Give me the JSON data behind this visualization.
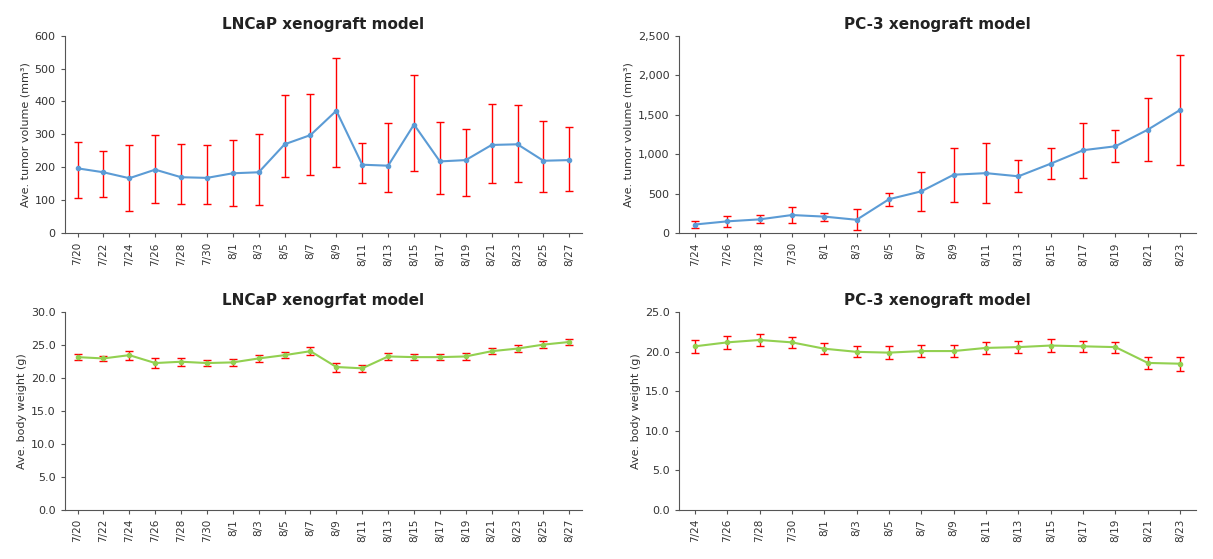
{
  "lncap_tumor": {
    "title": "LNCaP xenograft model",
    "ylabel": "Ave. tumor volume (mm³)",
    "xlabels": [
      "7/20",
      "7/22",
      "7/24",
      "7/26",
      "7/28",
      "7/30",
      "8/1",
      "8/3",
      "8/5",
      "8/7",
      "8/9",
      "8/11",
      "8/13",
      "8/15",
      "8/17",
      "8/19",
      "8/21",
      "8/23",
      "8/25",
      "8/27"
    ],
    "values": [
      197,
      185,
      167,
      193,
      170,
      168,
      182,
      185,
      270,
      298,
      372,
      208,
      205,
      330,
      218,
      222,
      268,
      270,
      220,
      222
    ],
    "yerr_lo": [
      90,
      75,
      100,
      100,
      80,
      80,
      100,
      100,
      100,
      120,
      170,
      55,
      80,
      140,
      100,
      110,
      115,
      115,
      95,
      95
    ],
    "yerr_hi": [
      80,
      65,
      100,
      105,
      100,
      100,
      100,
      115,
      150,
      125,
      160,
      65,
      130,
      150,
      120,
      95,
      125,
      120,
      120,
      100
    ],
    "ylim": [
      0,
      600
    ],
    "yticks": [
      0,
      100,
      200,
      300,
      400,
      500,
      600
    ],
    "line_color": "#5B9BD5",
    "err_color": "#FF0000"
  },
  "pc3_tumor": {
    "title": "PC-3 xenograft model",
    "ylabel": "Ave. tumor volume (mm³)",
    "xlabels": [
      "7/24",
      "7/26",
      "7/28",
      "7/30",
      "8/1",
      "8/3",
      "8/5",
      "8/7",
      "8/9",
      "8/11",
      "8/13",
      "8/15",
      "8/17",
      "8/19",
      "8/21",
      "8/23"
    ],
    "values": [
      110,
      150,
      175,
      230,
      210,
      170,
      430,
      530,
      740,
      760,
      720,
      880,
      1050,
      1100,
      1310,
      1560
    ],
    "yerr_lo": [
      40,
      70,
      50,
      100,
      50,
      130,
      80,
      250,
      340,
      380,
      200,
      200,
      350,
      200,
      400,
      700
    ],
    "yerr_hi": [
      40,
      70,
      50,
      100,
      50,
      130,
      80,
      250,
      340,
      380,
      200,
      200,
      350,
      200,
      400,
      700
    ],
    "ylim": [
      0,
      2500
    ],
    "yticks": [
      0,
      500,
      1000,
      1500,
      2000,
      2500
    ],
    "ytick_labels": [
      "0",
      "500",
      "1,000",
      "1,500",
      "2,000",
      "2,500"
    ],
    "line_color": "#5B9BD5",
    "err_color": "#FF0000"
  },
  "lncap_weight": {
    "title": "LNCaP xenogrfat model",
    "ylabel": "Ave. body weight (g)",
    "xlabels": [
      "7/20",
      "7/22",
      "7/24",
      "7/26",
      "7/28",
      "7/30",
      "8/1",
      "8/3",
      "8/5",
      "8/7",
      "8/9",
      "8/11",
      "8/13",
      "8/15",
      "8/17",
      "8/19",
      "8/21",
      "8/23",
      "8/25",
      "8/27"
    ],
    "values": [
      23.2,
      23.0,
      23.5,
      22.3,
      22.5,
      22.3,
      22.4,
      23.0,
      23.5,
      24.1,
      21.7,
      21.5,
      23.3,
      23.2,
      23.2,
      23.3,
      24.1,
      24.5,
      25.1,
      25.5
    ],
    "yerr_lo": [
      0.5,
      0.4,
      0.7,
      0.7,
      0.6,
      0.5,
      0.5,
      0.5,
      0.5,
      0.6,
      0.7,
      0.5,
      0.6,
      0.5,
      0.5,
      0.5,
      0.5,
      0.5,
      0.5,
      0.5
    ],
    "yerr_hi": [
      0.5,
      0.4,
      0.6,
      0.7,
      0.5,
      0.5,
      0.5,
      0.5,
      0.5,
      0.6,
      0.6,
      0.5,
      0.5,
      0.5,
      0.5,
      0.5,
      0.5,
      0.5,
      0.5,
      0.5
    ],
    "ylim": [
      0,
      30
    ],
    "yticks": [
      0.0,
      5.0,
      10.0,
      15.0,
      20.0,
      25.0,
      30.0
    ],
    "line_color": "#92D050",
    "err_color": "#FF0000"
  },
  "pc3_weight": {
    "title": "PC-3 xenograft model",
    "ylabel": "Ave. body weight (g)",
    "xlabels": [
      "7/24",
      "7/26",
      "7/28",
      "7/30",
      "8/1",
      "8/3",
      "8/5",
      "8/7",
      "8/9",
      "8/11",
      "8/13",
      "8/15",
      "8/17",
      "8/19",
      "8/21",
      "8/23"
    ],
    "values": [
      20.7,
      21.2,
      21.5,
      21.2,
      20.4,
      20.0,
      19.9,
      20.1,
      20.1,
      20.5,
      20.6,
      20.8,
      20.7,
      20.6,
      18.6,
      18.5
    ],
    "yerr_lo": [
      0.8,
      0.8,
      0.8,
      0.7,
      0.7,
      0.7,
      0.8,
      0.8,
      0.8,
      0.8,
      0.8,
      0.8,
      0.7,
      0.7,
      0.8,
      0.9
    ],
    "yerr_hi": [
      0.8,
      0.8,
      0.8,
      0.7,
      0.7,
      0.7,
      0.8,
      0.8,
      0.8,
      0.8,
      0.8,
      0.8,
      0.7,
      0.7,
      0.8,
      0.9
    ],
    "ylim": [
      0,
      25
    ],
    "yticks": [
      0.0,
      5.0,
      10.0,
      15.0,
      20.0,
      25.0
    ],
    "line_color": "#92D050",
    "err_color": "#FF0000"
  },
  "bg_color": "#FFFFFF",
  "plot_bg_color": "#FFFFFF"
}
